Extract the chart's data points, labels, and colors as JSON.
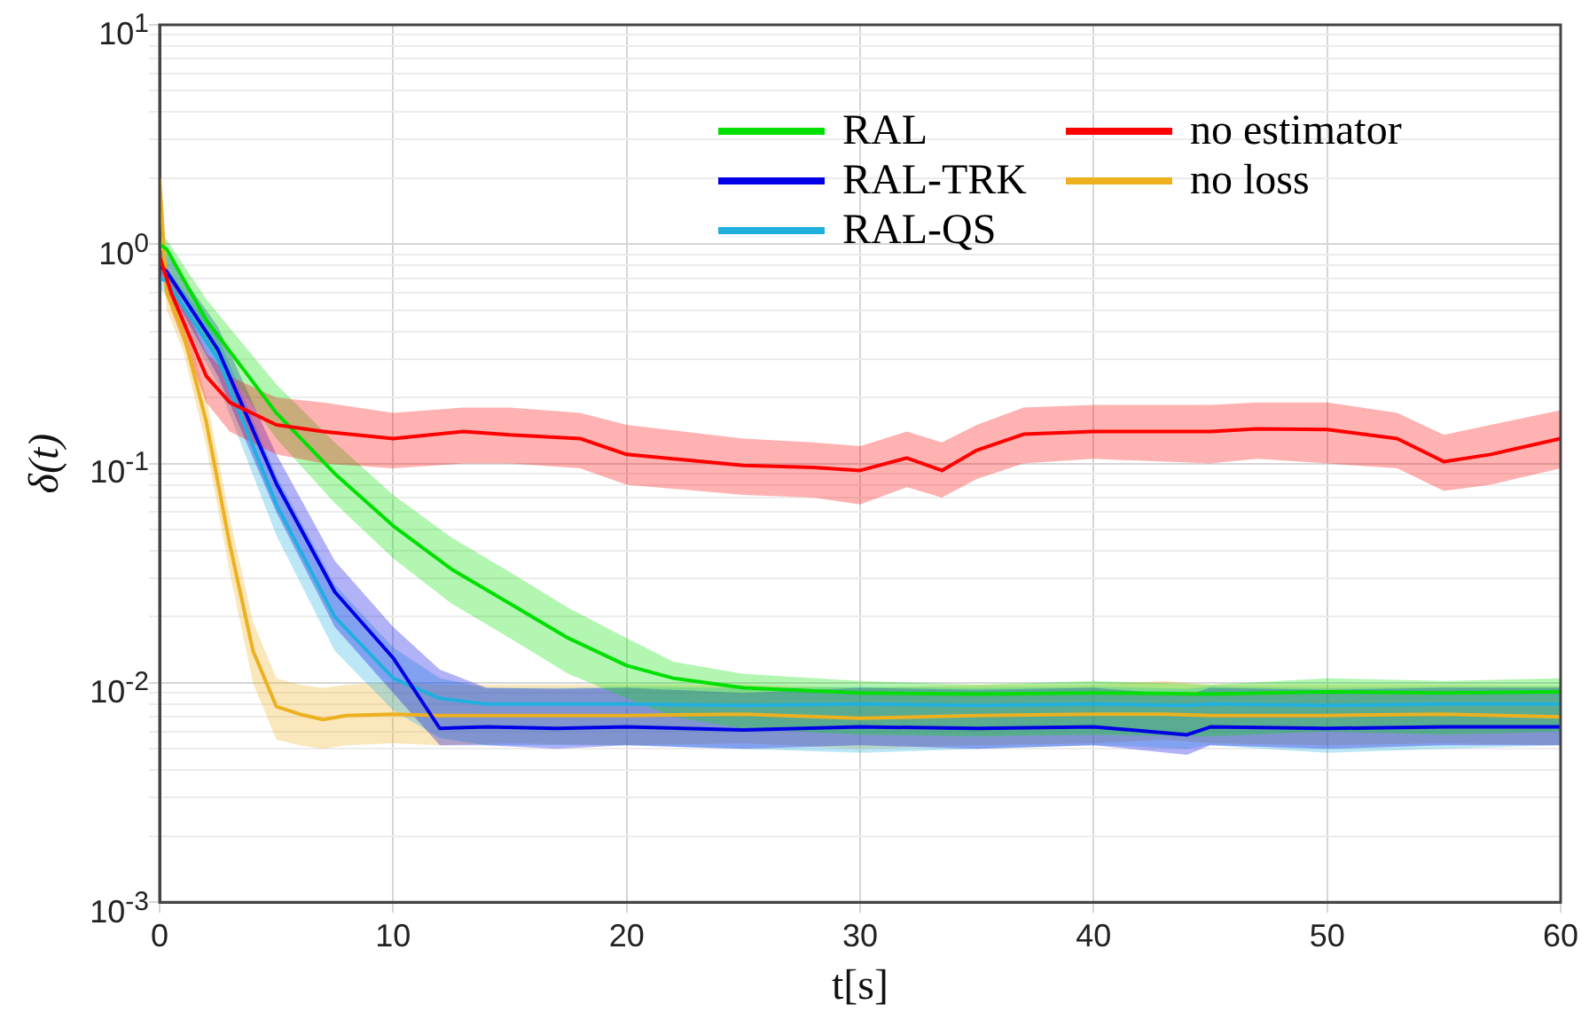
{
  "chart_data": {
    "type": "line",
    "xlabel": "t[s]",
    "ylabel": "δ(t)",
    "log": "y",
    "grid": true,
    "legend": "top right",
    "marker": "none",
    "line_style": "solid",
    "xlim": [
      0,
      60
    ],
    "xticks": [
      0,
      10,
      20,
      30,
      40,
      50,
      60
    ],
    "ylim": [
      0.001,
      10
    ],
    "yticks": [
      {
        "value": 0.001,
        "label": "10$^{-3}$"
      },
      {
        "value": 0.002,
        "label": null
      },
      {
        "value": 0.003,
        "label": null
      },
      {
        "value": 0.004,
        "label": null
      },
      {
        "value": 0.005,
        "label": null
      },
      {
        "value": 0.006,
        "label": null
      },
      {
        "value": 0.007,
        "label": null
      },
      {
        "value": 0.008,
        "label": null
      },
      {
        "value": 0.009,
        "label": null
      },
      {
        "value": 0.01,
        "label": "10$^{-2}$"
      },
      {
        "value": 0.02,
        "label": null
      },
      {
        "value": 0.03,
        "label": null
      },
      {
        "value": 0.04,
        "label": null
      },
      {
        "value": 0.05,
        "label": null
      },
      {
        "value": 0.06,
        "label": null
      },
      {
        "value": 0.07,
        "label": null
      },
      {
        "value": 0.08,
        "label": null
      },
      {
        "value": 0.09,
        "label": null
      },
      {
        "value": 0.1,
        "label": "10$^{-1}$"
      },
      {
        "value": 0.2,
        "label": null
      },
      {
        "value": 0.3,
        "label": null
      },
      {
        "value": 0.4,
        "label": null
      },
      {
        "value": 0.5,
        "label": null
      },
      {
        "value": 0.6,
        "label": null
      },
      {
        "value": 0.7,
        "label": null
      },
      {
        "value": 0.8,
        "label": null
      },
      {
        "value": 0.9,
        "label": null
      },
      {
        "value": 1,
        "label": "10$^{0}$"
      },
      {
        "value": 2,
        "label": null
      },
      {
        "value": 3,
        "label": null
      },
      {
        "value": 4,
        "label": null
      },
      {
        "value": 5,
        "label": null
      },
      {
        "value": 6,
        "label": null
      },
      {
        "value": 7,
        "label": null
      },
      {
        "value": 8,
        "label": null
      },
      {
        "value": 9,
        "label": null
      },
      {
        "value": 10,
        "label": "10$^{1}$"
      }
    ],
    "series": [
      {
        "name": "no estimator",
        "color": "#ff0000",
        "x": [
          0,
          0.5,
          2,
          3,
          5,
          7,
          10,
          13,
          15,
          18,
          20,
          25,
          28,
          30,
          32,
          33.5,
          35,
          37,
          40,
          45,
          47,
          50,
          53,
          55,
          57,
          60
        ],
        "values": [
          0.88,
          0.6,
          0.25,
          0.19,
          0.15,
          0.14,
          0.13,
          0.14,
          0.135,
          0.13,
          0.11,
          0.098,
          0.096,
          0.093,
          0.106,
          0.093,
          0.115,
          0.136,
          0.14,
          0.14,
          0.144,
          0.143,
          0.13,
          0.102,
          0.11,
          0.13
        ],
        "lower": [
          0.8,
          0.5,
          0.19,
          0.14,
          0.11,
          0.1,
          0.095,
          0.1,
          0.1,
          0.095,
          0.08,
          0.072,
          0.07,
          0.065,
          0.078,
          0.07,
          0.085,
          0.1,
          0.105,
          0.1,
          0.105,
          0.1,
          0.095,
          0.075,
          0.08,
          0.095
        ],
        "upper": [
          1,
          0.7,
          0.32,
          0.25,
          0.2,
          0.19,
          0.17,
          0.18,
          0.18,
          0.17,
          0.15,
          0.13,
          0.125,
          0.12,
          0.14,
          0.125,
          0.15,
          0.18,
          0.185,
          0.185,
          0.19,
          0.19,
          0.17,
          0.135,
          0.15,
          0.175
        ]
      },
      {
        "name": "RAL",
        "color": "#00e000",
        "x": [
          0,
          0.3,
          2,
          5,
          7.5,
          10,
          12.5,
          15,
          17.5,
          20,
          22,
          25,
          30,
          35,
          40,
          45,
          50,
          55,
          60
        ],
        "values": [
          1,
          0.95,
          0.45,
          0.17,
          0.09,
          0.052,
          0.033,
          0.023,
          0.016,
          0.012,
          0.0105,
          0.0095,
          0.009,
          0.0089,
          0.009,
          0.0089,
          0.0091,
          0.009,
          0.0091
        ],
        "lower": [
          0.85,
          0.8,
          0.36,
          0.13,
          0.066,
          0.037,
          0.023,
          0.016,
          0.011,
          0.0085,
          0.007,
          0.0062,
          0.0058,
          0.0057,
          0.0058,
          0.0057,
          0.006,
          0.0058,
          0.006
        ],
        "upper": [
          1.1,
          1.05,
          0.56,
          0.23,
          0.125,
          0.072,
          0.046,
          0.032,
          0.022,
          0.016,
          0.0125,
          0.011,
          0.0102,
          0.0098,
          0.0102,
          0.0098,
          0.0105,
          0.0102,
          0.0105
        ]
      },
      {
        "name": "RAL-TRK",
        "color": "#0000e6",
        "x": [
          0,
          0.3,
          2.5,
          5,
          7.5,
          10,
          12,
          14,
          17,
          20,
          25,
          30,
          35,
          40,
          44,
          45,
          50,
          55,
          60
        ],
        "values": [
          0.8,
          0.75,
          0.33,
          0.081,
          0.026,
          0.013,
          0.0062,
          0.0063,
          0.0062,
          0.0063,
          0.0061,
          0.0063,
          0.0062,
          0.0063,
          0.0058,
          0.0063,
          0.0062,
          0.0063,
          0.0063
        ],
        "lower": [
          0.72,
          0.66,
          0.25,
          0.06,
          0.018,
          0.009,
          0.0052,
          0.0052,
          0.005,
          0.0052,
          0.005,
          0.0052,
          0.005,
          0.0052,
          0.0047,
          0.0052,
          0.005,
          0.0052,
          0.0052
        ],
        "upper": [
          0.95,
          0.9,
          0.42,
          0.11,
          0.036,
          0.018,
          0.0115,
          0.0095,
          0.0094,
          0.0095,
          0.009,
          0.0095,
          0.0093,
          0.0095,
          0.0088,
          0.0095,
          0.0093,
          0.0095,
          0.0095
        ]
      },
      {
        "name": "RAL-QS",
        "color": "#20b0e0",
        "x": [
          0,
          0.3,
          2.5,
          5,
          7.5,
          10,
          12,
          14,
          17,
          20,
          25,
          30,
          35,
          40,
          44,
          45,
          50,
          55,
          60
        ],
        "values": [
          0.7,
          0.68,
          0.3,
          0.065,
          0.02,
          0.0105,
          0.0085,
          0.008,
          0.008,
          0.008,
          0.0079,
          0.008,
          0.0079,
          0.008,
          0.0079,
          0.008,
          0.0079,
          0.008,
          0.008
        ],
        "lower": [
          0.62,
          0.6,
          0.23,
          0.047,
          0.014,
          0.0075,
          0.0056,
          0.0052,
          0.0052,
          0.0052,
          0.005,
          0.0048,
          0.005,
          0.0052,
          0.005,
          0.0052,
          0.0048,
          0.005,
          0.0052
        ],
        "upper": [
          0.8,
          0.78,
          0.38,
          0.088,
          0.028,
          0.0145,
          0.0105,
          0.0095,
          0.0095,
          0.0096,
          0.0095,
          0.0096,
          0.0095,
          0.0096,
          0.0094,
          0.0096,
          0.0095,
          0.0096,
          0.0096
        ]
      },
      {
        "name": "no loss",
        "color": "#edb120",
        "x": [
          0,
          0.3,
          1,
          2,
          3,
          4,
          5,
          6,
          7,
          8,
          10,
          12,
          15,
          20,
          25,
          30,
          35,
          40,
          43,
          45,
          50,
          55,
          60
        ],
        "values": [
          2,
          0.6,
          0.4,
          0.155,
          0.043,
          0.014,
          0.0078,
          0.0072,
          0.0068,
          0.0071,
          0.0072,
          0.0071,
          0.0071,
          0.0071,
          0.0072,
          0.0069,
          0.0071,
          0.0072,
          0.0072,
          0.0071,
          0.0071,
          0.0072,
          0.007
        ],
        "lower": [
          1.8,
          0.5,
          0.33,
          0.12,
          0.032,
          0.01,
          0.0055,
          0.0052,
          0.005,
          0.0052,
          0.0053,
          0.0052,
          0.0053,
          0.0052,
          0.0053,
          0.005,
          0.0052,
          0.0053,
          0.0055,
          0.0053,
          0.0052,
          0.0053,
          0.0052
        ],
        "upper": [
          2.2,
          0.7,
          0.48,
          0.2,
          0.057,
          0.019,
          0.0105,
          0.0098,
          0.0095,
          0.0098,
          0.01,
          0.0098,
          0.0098,
          0.0098,
          0.0098,
          0.0095,
          0.0098,
          0.0098,
          0.0102,
          0.0098,
          0.0098,
          0.0098,
          0.0097
        ]
      }
    ]
  }
}
